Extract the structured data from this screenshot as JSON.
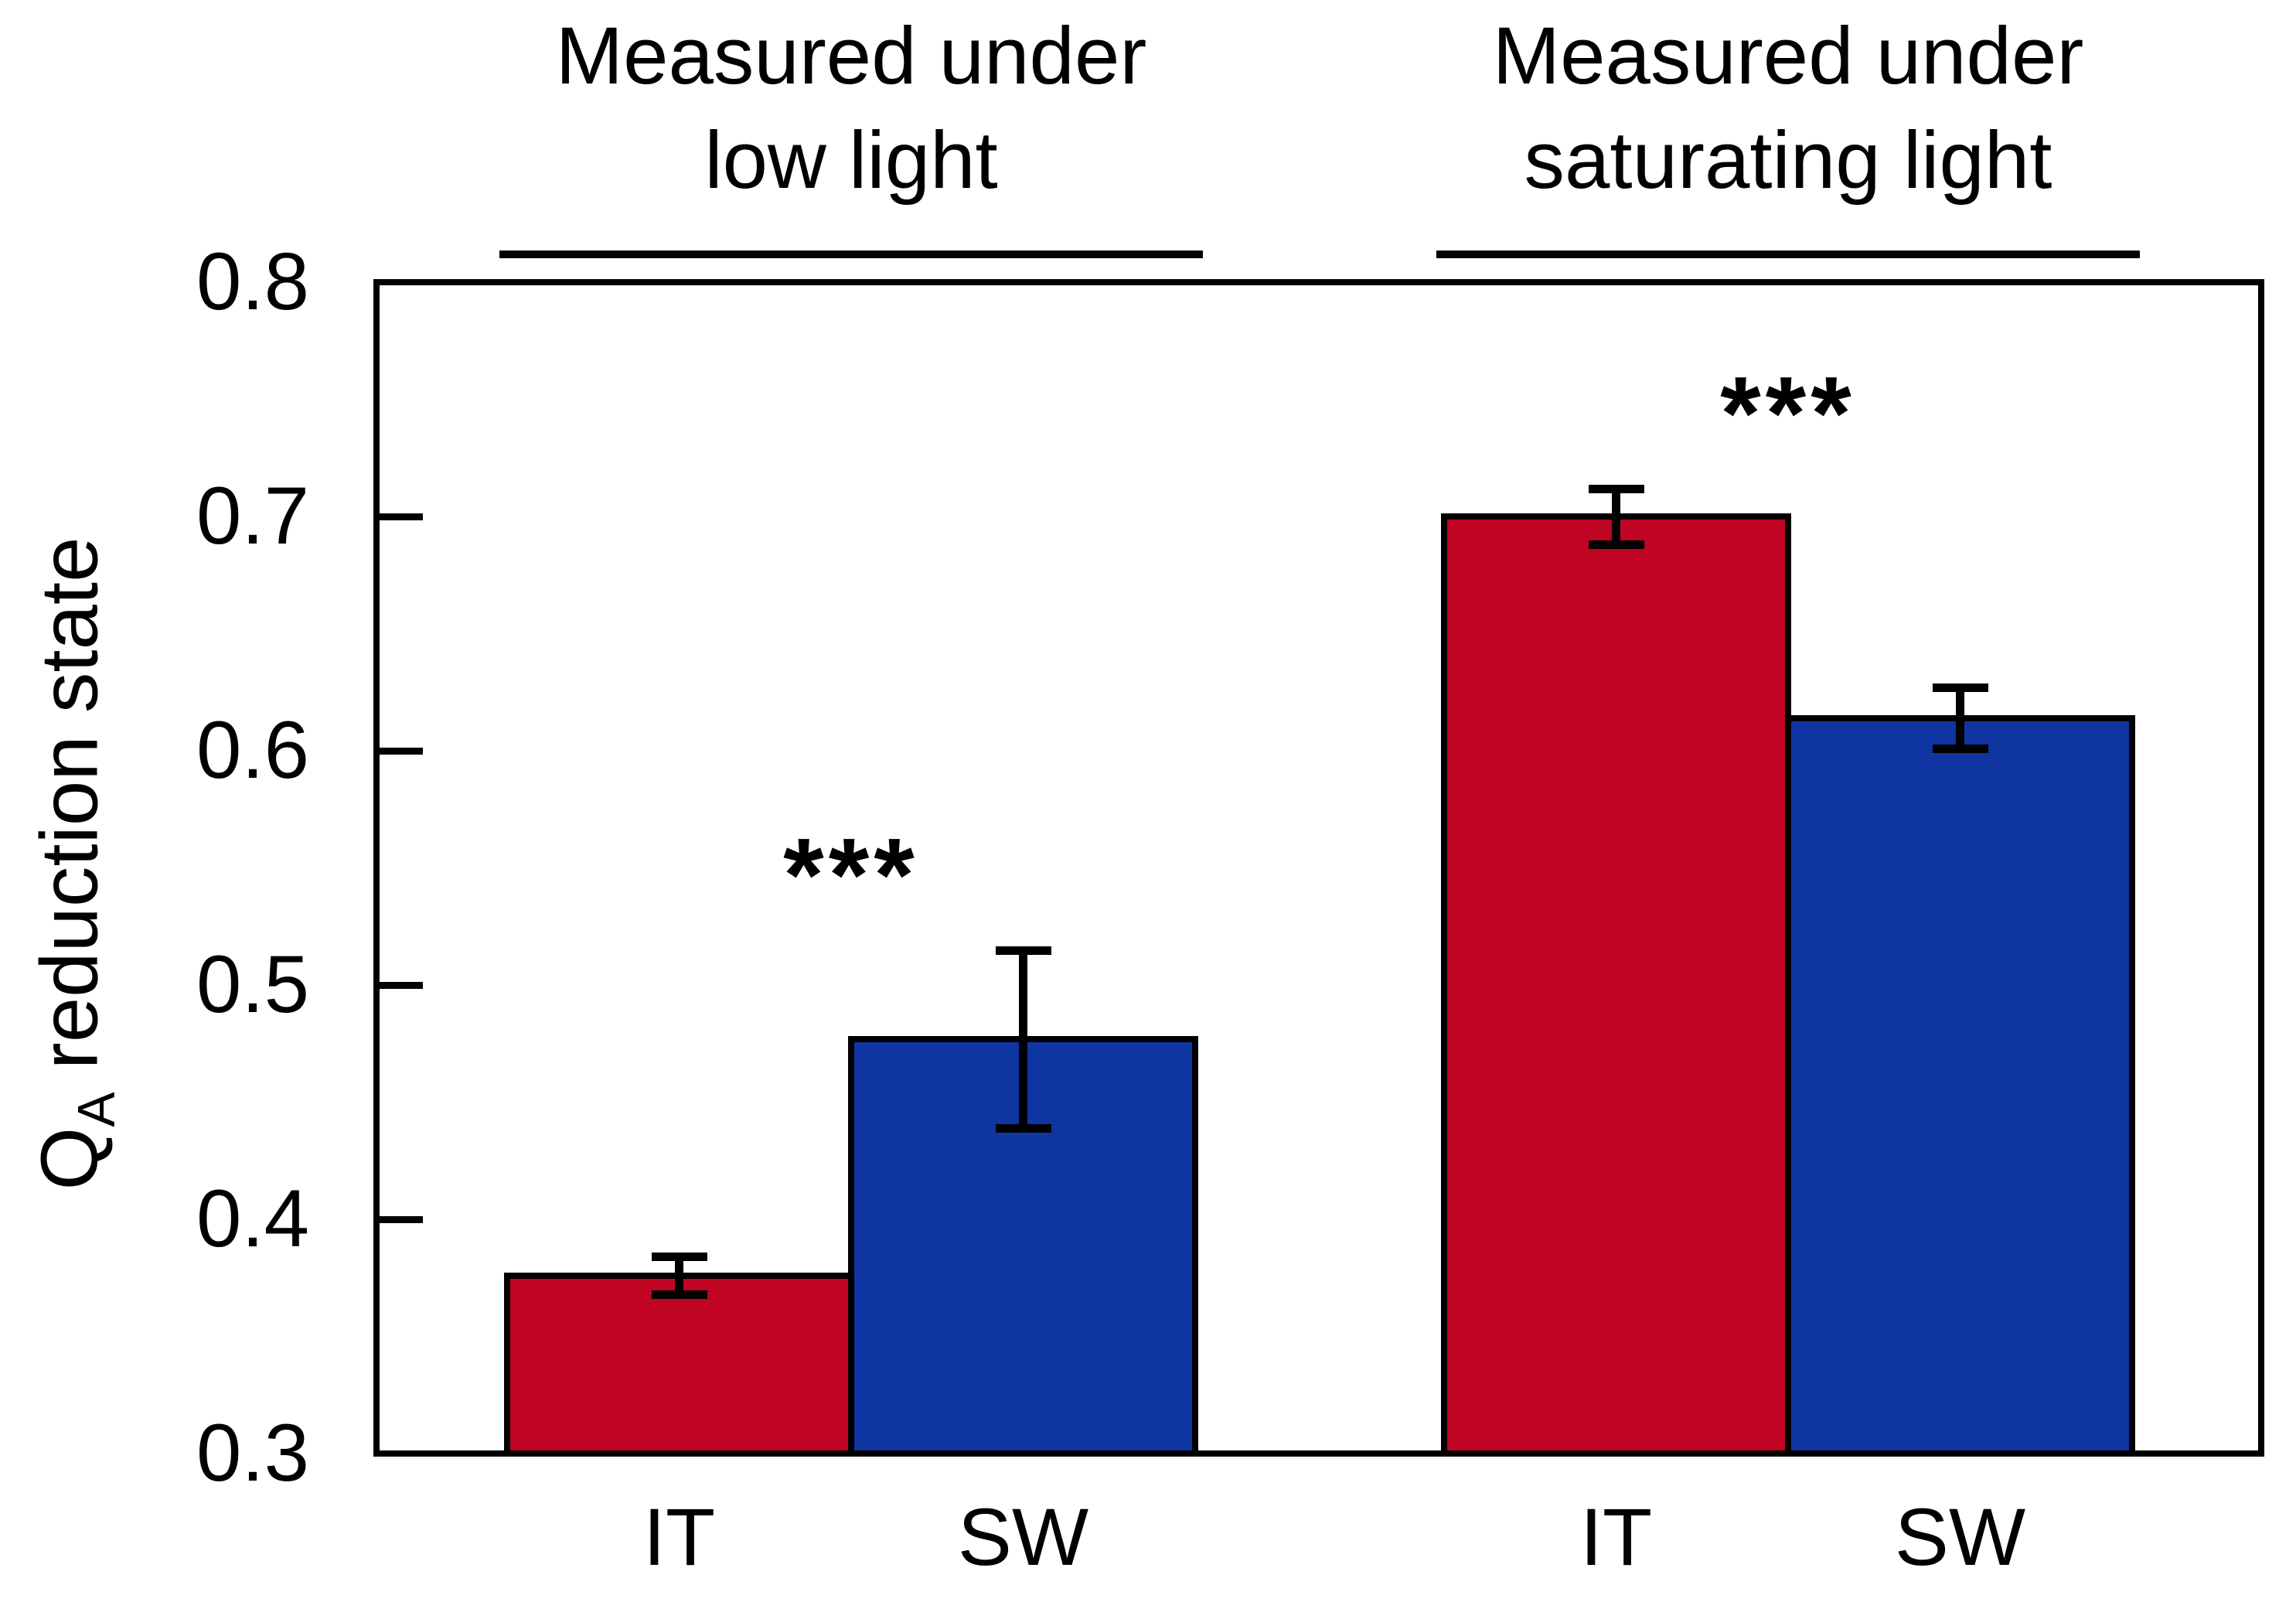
{
  "figure": {
    "background": "#ffffff",
    "text_color": "#000000",
    "frame_color": "#000000"
  },
  "y_axis": {
    "title": {
      "base": "Q",
      "sub": "A",
      "rest": " reduction state"
    }
  },
  "chart_data": {
    "type": "bar",
    "title": "",
    "xlabel": "",
    "ylabel": "QA reduction state",
    "ylim": [
      0.3,
      0.8
    ],
    "yticks": [
      0.8,
      0.7,
      0.6,
      0.5,
      0.4,
      0.3
    ],
    "ytick_labels": [
      "0.8",
      "0.7",
      "0.6",
      "0.5",
      "0.4",
      "0.3"
    ],
    "grid": false,
    "legend_position": "none",
    "bar_colors": {
      "IT": "#c00524",
      "SW": "#0f35a3"
    },
    "groups": [
      {
        "header_line1": "Measured under",
        "header_line2": "low light",
        "significance": "***",
        "categories": [
          "IT",
          "SW"
        ],
        "series": [
          {
            "name": "IT",
            "value": 0.376,
            "error": 0.008,
            "color": "#c00524"
          },
          {
            "name": "SW",
            "value": 0.477,
            "error": 0.038,
            "color": "#0f35a3"
          }
        ]
      },
      {
        "header_line1": "Measured under",
        "header_line2": "saturating light",
        "significance": "***",
        "categories": [
          "IT",
          "SW"
        ],
        "series": [
          {
            "name": "IT",
            "value": 0.7,
            "error": 0.012,
            "color": "#c00524"
          },
          {
            "name": "SW",
            "value": 0.614,
            "error": 0.013,
            "color": "#0f35a3"
          }
        ]
      }
    ]
  }
}
